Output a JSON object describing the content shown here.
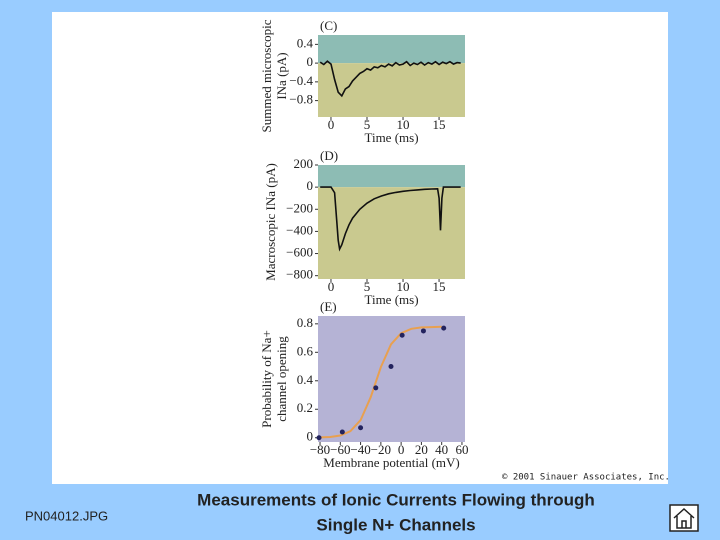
{
  "slide": {
    "title_lines": [
      "Measurements of Ionic Currents Flowing through",
      "Single N+ Channels"
    ],
    "file_name": "PN04012.JPG",
    "copyright": "© 2001 Sinauer Associates, Inc."
  },
  "chart_data": [
    {
      "type": "line",
      "panel_label": "(C)",
      "y_label": [
        "Summed microscopic",
        "INa (pA)"
      ],
      "x_label": "Time (ms)",
      "color": "#111111",
      "upper_color": "#8dbcb4",
      "lower_color": "#c9c98f",
      "x": [
        -1.5,
        -1,
        -0.5,
        0,
        0.5,
        1,
        1.5,
        2,
        2.5,
        3,
        3.5,
        4,
        4.5,
        5,
        5.5,
        6,
        6.5,
        7,
        7.5,
        8,
        8.5,
        9,
        9.5,
        10,
        10.5,
        11,
        11.5,
        12,
        12.5,
        13,
        13.5,
        14,
        14.5,
        15,
        15.5,
        16,
        16.5,
        17,
        17.5,
        18
      ],
      "values": [
        0.02,
        -0.03,
        0.04,
        -0.02,
        -0.35,
        -0.62,
        -0.7,
        -0.55,
        -0.5,
        -0.38,
        -0.3,
        -0.22,
        -0.18,
        -0.12,
        -0.15,
        -0.08,
        -0.1,
        -0.05,
        -0.08,
        -0.02,
        -0.06,
        0.01,
        -0.04,
        -0.02,
        0.03,
        -0.05,
        0.0,
        -0.03,
        0.02,
        -0.04,
        0.01,
        -0.02,
        0.03,
        -0.03,
        0.02,
        -0.01,
        0.03,
        -0.02,
        0.01,
        0.0
      ],
      "xlim": [
        -1.8,
        18.6
      ],
      "ylim": [
        -1.15,
        0.6
      ],
      "xticks": [
        0,
        5,
        10,
        15
      ],
      "yticks": [
        0.4,
        0,
        {
          "value": -0.4,
          "label": "−0.4"
        },
        {
          "value": -0.8,
          "label": "−0.8"
        }
      ]
    },
    {
      "type": "line",
      "panel_label": "(D)",
      "y_label": [
        "Macroscopic INa (pA)"
      ],
      "x_label": "Time (ms)",
      "color": "#111111",
      "upper_color": "#8dbcb4",
      "lower_color": "#c9c98f",
      "x": [
        -1.5,
        -1,
        0,
        0.5,
        0.8,
        1,
        1.2,
        1.5,
        2,
        2.5,
        3,
        4,
        5,
        6,
        7,
        8,
        9,
        10,
        11,
        12,
        13,
        14,
        14.8,
        15,
        15.2,
        15.4,
        15.6,
        16,
        17,
        18
      ],
      "values": [
        0,
        0,
        0,
        -50,
        -300,
        -480,
        -560,
        -520,
        -420,
        -340,
        -280,
        -200,
        -145,
        -105,
        -80,
        -60,
        -48,
        -38,
        -30,
        -25,
        -20,
        -17,
        -15,
        -100,
        -390,
        -100,
        0,
        0,
        0,
        0
      ],
      "xlim": [
        -1.8,
        18.6
      ],
      "ylim": [
        -830,
        200
      ],
      "xticks": [
        0,
        5,
        10,
        15
      ],
      "yticks": [
        200,
        0,
        {
          "value": -200,
          "label": "−200"
        },
        {
          "value": -400,
          "label": "−400"
        },
        {
          "value": -600,
          "label": "−600"
        },
        {
          "value": -800,
          "label": "−800"
        }
      ]
    },
    {
      "type": "scatter",
      "panel_label": "(E)",
      "y_label": [
        "Probability of Na+",
        "channel opening"
      ],
      "x_label": "Membrane potential (mV)",
      "background": "#b5b3d5",
      "points": {
        "color": "#23235e",
        "x": [
          -81,
          -58,
          -40,
          -25,
          -10,
          1,
          22,
          42
        ],
        "values": [
          0.0,
          0.04,
          0.07,
          0.35,
          0.5,
          0.72,
          0.75,
          0.77
        ]
      },
      "fit": {
        "color": "#e8a050",
        "x": [
          -80,
          -70,
          -60,
          -50,
          -40,
          -30,
          -20,
          -10,
          0,
          10,
          20,
          30,
          40
        ],
        "values": [
          0.002,
          0.005,
          0.016,
          0.046,
          0.124,
          0.285,
          0.497,
          0.656,
          0.734,
          0.765,
          0.775,
          0.777,
          0.78
        ]
      },
      "xlim": [
        -82,
        63
      ],
      "ylim": [
        -0.03,
        0.855
      ],
      "xticks": [
        {
          "value": -80,
          "label": "−80"
        },
        {
          "value": -60,
          "label": "−60"
        },
        {
          "value": -40,
          "label": "−40"
        },
        {
          "value": -20,
          "label": "−20"
        },
        0,
        20,
        40,
        60
      ],
      "yticks": [
        0.8,
        0.6,
        0.4,
        0.2,
        0
      ]
    }
  ]
}
